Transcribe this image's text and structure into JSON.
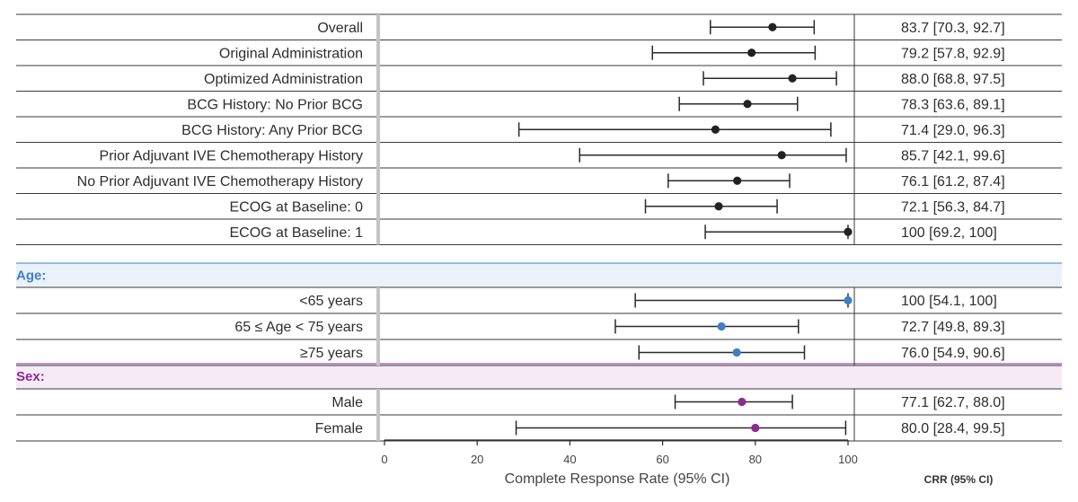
{
  "chart_data": {
    "type": "forest",
    "xlabel": "Complete Response Rate (95% CI)",
    "ci_column_header": "CRR (95% CI)",
    "xlim": [
      0,
      100
    ],
    "xticks": [
      "0",
      "20",
      "40",
      "60",
      "80",
      "100"
    ],
    "grid": false,
    "colors": {
      "overall": "#222222",
      "age": "#3f7fc4",
      "sex": "#8b2b91"
    },
    "groups": [
      {
        "name": "",
        "color_key": "overall",
        "rows": [
          {
            "label": "Overall",
            "value": 83.7,
            "lo": 70.3,
            "hi": 92.7,
            "text": "83.7 [70.3, 92.7]"
          },
          {
            "label": "Original Administration",
            "value": 79.2,
            "lo": 57.8,
            "hi": 92.9,
            "text": "79.2 [57.8, 92.9]"
          },
          {
            "label": "Optimized Administration",
            "value": 88.0,
            "lo": 68.8,
            "hi": 97.5,
            "text": "88.0 [68.8, 97.5]"
          },
          {
            "label": "BCG History: No Prior BCG",
            "value": 78.3,
            "lo": 63.6,
            "hi": 89.1,
            "text": "78.3 [63.6, 89.1]"
          },
          {
            "label": "BCG History: Any Prior BCG",
            "value": 71.4,
            "lo": 29.0,
            "hi": 96.3,
            "text": "71.4 [29.0, 96.3]"
          },
          {
            "label": "Prior Adjuvant IVE Chemotherapy History",
            "value": 85.7,
            "lo": 42.1,
            "hi": 99.6,
            "text": "85.7 [42.1, 99.6]"
          },
          {
            "label": "No Prior Adjuvant IVE Chemotherapy History",
            "value": 76.1,
            "lo": 61.2,
            "hi": 87.4,
            "text": "76.1 [61.2, 87.4]"
          },
          {
            "label": "ECOG at Baseline: 0",
            "value": 72.1,
            "lo": 56.3,
            "hi": 84.7,
            "text": "72.1 [56.3, 84.7]"
          },
          {
            "label": "ECOG at Baseline: 1",
            "value": 100,
            "lo": 69.2,
            "hi": 100,
            "text": "100 [69.2, 100]"
          }
        ]
      },
      {
        "name": "Age:",
        "color_key": "age",
        "rows": [
          {
            "label": "<65 years",
            "value": 100,
            "lo": 54.1,
            "hi": 100,
            "text": "100 [54.1, 100]"
          },
          {
            "label": "65 ≤ Age < 75 years",
            "value": 72.7,
            "lo": 49.8,
            "hi": 89.3,
            "text": "72.7 [49.8, 89.3]"
          },
          {
            "label": "≥75 years",
            "value": 76.0,
            "lo": 54.9,
            "hi": 90.6,
            "text": "76.0 [54.9, 90.6]"
          }
        ]
      },
      {
        "name": "Sex:",
        "color_key": "sex",
        "rows": [
          {
            "label": "Male",
            "value": 77.1,
            "lo": 62.7,
            "hi": 88.0,
            "text": "77.1 [62.7, 88.0]"
          },
          {
            "label": "Female",
            "value": 80.0,
            "lo": 28.4,
            "hi": 99.5,
            "text": "80.0 [28.4, 99.5]"
          }
        ]
      }
    ]
  }
}
